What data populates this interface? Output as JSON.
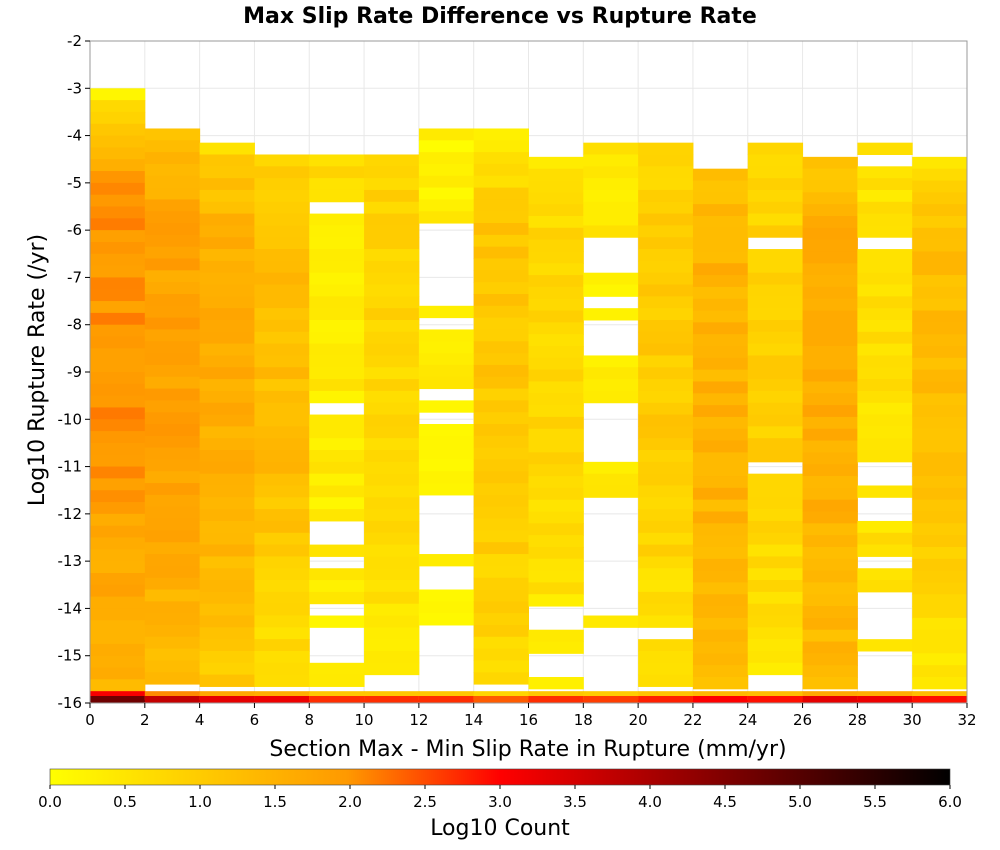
{
  "chart_data": {
    "type": "heatmap",
    "title": "Max Slip Rate Difference vs Rupture Rate",
    "xlabel": "Section Max - Min Slip Rate in Rupture (mm/yr)",
    "ylabel": "Log10 Rupture Rate (/yr)",
    "xlim": [
      0,
      32
    ],
    "ylim": [
      -16,
      -2
    ],
    "x_ticks": [
      0,
      2,
      4,
      6,
      8,
      10,
      12,
      14,
      16,
      18,
      20,
      22,
      24,
      26,
      28,
      30,
      32
    ],
    "y_ticks": [
      -2,
      -3,
      -4,
      -5,
      -6,
      -7,
      -8,
      -9,
      -10,
      -11,
      -12,
      -13,
      -14,
      -15,
      -16
    ],
    "x_bin_width": 2,
    "y_bin_height": 0.25,
    "colorbar": {
      "label": "Log10 Count",
      "range": [
        0,
        6
      ],
      "ticks": [
        "0.0",
        "0.5",
        "1.0",
        "1.5",
        "2.0",
        "2.5",
        "3.0",
        "3.5",
        "4.0",
        "4.5",
        "5.0",
        "5.5",
        "6.0"
      ],
      "colors": [
        "#ffff00",
        "#ff9900",
        "#ff0000",
        "#000000"
      ]
    },
    "columns": [
      {
        "x": 0,
        "y_top": -3.0,
        "v_top": 0.3,
        "v_mid": 2.0,
        "v_bottom": 1.4,
        "gaps": [],
        "bottom": 4.7
      },
      {
        "x": 2,
        "y_top": -3.85,
        "v_top": 1.1,
        "v_mid": 1.8,
        "v_bottom": 1.3,
        "gaps": [],
        "bottom": 3.7
      },
      {
        "x": 4,
        "y_top": -4.15,
        "v_top": 0.7,
        "v_mid": 1.6,
        "v_bottom": 1.0,
        "gaps": [],
        "bottom": 3.3
      },
      {
        "x": 6,
        "y_top": -4.4,
        "v_top": 0.8,
        "v_mid": 1.3,
        "v_bottom": 0.5,
        "gaps": [],
        "bottom": 3.2
      },
      {
        "x": 8,
        "y_top": -4.4,
        "v_top": 0.8,
        "v_mid": 0.4,
        "v_bottom": 0.3,
        "gaps": [
          [
            -5.6,
            -5.4
          ],
          [
            -9.8,
            -9.6
          ],
          [
            -12.7,
            -12.1
          ],
          [
            -13.25,
            -13.0
          ],
          [
            -14.2,
            -13.95
          ],
          [
            -15.05,
            -14.5
          ]
        ],
        "bottom": 2.7
      },
      {
        "x": 10,
        "y_top": -4.4,
        "v_top": 0.9,
        "v_mid": 0.8,
        "v_bottom": 0.4,
        "gaps": [
          [
            -16.0,
            -15.3
          ]
        ],
        "bottom": 2.7
      },
      {
        "x": 12,
        "y_top": -3.85,
        "v_top": 0.2,
        "v_mid": 0.3,
        "v_bottom": 0.2,
        "gaps": [
          [
            -7.6,
            -5.85
          ],
          [
            -8.1,
            -7.85
          ],
          [
            -9.6,
            -9.3
          ],
          [
            -10.1,
            -9.85
          ],
          [
            -12.75,
            -11.6
          ],
          [
            -13.6,
            -13.05
          ],
          [
            -16.0,
            -14.45
          ]
        ],
        "bottom": 2.7
      },
      {
        "x": 14,
        "y_top": -3.85,
        "v_top": 0.3,
        "v_mid": 1.1,
        "v_bottom": 0.7,
        "gaps": [],
        "bottom": 2.4
      },
      {
        "x": 16,
        "y_top": -4.45,
        "v_top": 0.4,
        "v_mid": 0.8,
        "v_bottom": 0.3,
        "gaps": [
          [
            -14.4,
            -13.9
          ],
          [
            -15.35,
            -14.9
          ],
          [
            -15.9,
            -15.6
          ]
        ],
        "bottom": 2.7
      },
      {
        "x": 18,
        "y_top": -4.15,
        "v_top": 0.6,
        "v_mid": 0.4,
        "v_bottom": 0.3,
        "gaps": [
          [
            -7.0,
            -6.1
          ],
          [
            -7.6,
            -7.35
          ],
          [
            -8.55,
            -7.9
          ],
          [
            -9.0,
            -8.8
          ],
          [
            -11.0,
            -9.6
          ],
          [
            -14.1,
            -11.6
          ],
          [
            -16.0,
            -14.45
          ]
        ],
        "bottom": 2.6
      },
      {
        "x": 20,
        "y_top": -4.15,
        "v_top": 0.8,
        "v_mid": 1.0,
        "v_bottom": 0.4,
        "gaps": [
          [
            -14.7,
            -14.45
          ]
        ],
        "bottom": 2.8
      },
      {
        "x": 22,
        "y_top": -4.7,
        "v_top": 1.2,
        "v_mid": 1.5,
        "v_bottom": 1.2,
        "gaps": [],
        "bottom": 3.0
      },
      {
        "x": 24,
        "y_top": -4.15,
        "v_top": 0.6,
        "v_mid": 0.9,
        "v_bottom": 0.5,
        "gaps": [
          [
            -6.45,
            -6.2
          ],
          [
            -11.25,
            -11.0
          ],
          [
            -16.0,
            -15.3
          ]
        ],
        "bottom": 2.9
      },
      {
        "x": 26,
        "y_top": -4.45,
        "v_top": 1.0,
        "v_mid": 1.6,
        "v_bottom": 1.3,
        "gaps": [],
        "bottom": 3.3
      },
      {
        "x": 28,
        "y_top": -4.15,
        "v_top": 0.4,
        "v_mid": 0.6,
        "v_bottom": 0.5,
        "gaps": [
          [
            -4.7,
            -4.45
          ],
          [
            -6.4,
            -6.15
          ],
          [
            -11.3,
            -11.0
          ],
          [
            -12.1,
            -11.6
          ],
          [
            -13.05,
            -12.8
          ],
          [
            -14.6,
            -13.6
          ],
          [
            -16.0,
            -14.85
          ]
        ],
        "bottom": 3.2
      },
      {
        "x": 30,
        "y_top": -4.45,
        "v_top": 0.5,
        "v_mid": 1.3,
        "v_bottom": 0.4,
        "gaps": [],
        "bottom": 2.9
      }
    ]
  }
}
